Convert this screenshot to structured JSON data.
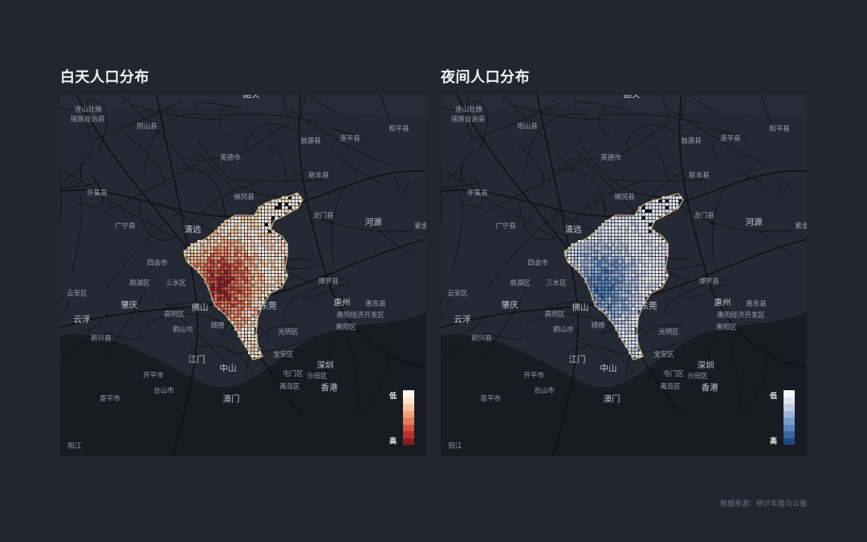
{
  "panels": [
    {
      "title": "白天人口分布",
      "legend": {
        "low": "低",
        "high": "高",
        "colors": [
          "#fff6ee",
          "#fde4cd",
          "#f9c6a0",
          "#f2a27a",
          "#e57a58",
          "#d25440",
          "#b8322d",
          "#8e1a1c"
        ]
      }
    },
    {
      "title": "夜间人口分布",
      "legend": {
        "low": "低",
        "high": "高",
        "colors": [
          "#f4f5fb",
          "#dfe3ef",
          "#c3cde3",
          "#9fb3d6",
          "#7b9bc9",
          "#5a82ba",
          "#3a66a3",
          "#1f477e"
        ]
      }
    }
  ],
  "places": [
    {
      "name": "韶关"
    },
    {
      "name": "连山壮族"
    },
    {
      "name": "瑶族自治县"
    },
    {
      "name": "阳山县"
    },
    {
      "name": "和平县"
    },
    {
      "name": "翁源县"
    },
    {
      "name": "连平县"
    },
    {
      "name": "英德市"
    },
    {
      "name": "新丰县"
    },
    {
      "name": "怀集县"
    },
    {
      "name": "佛冈县"
    },
    {
      "name": "龙门县"
    },
    {
      "name": "河源"
    },
    {
      "name": "紫金"
    },
    {
      "name": "广宁县"
    },
    {
      "name": "清远"
    },
    {
      "name": "四会市"
    },
    {
      "name": "鼎湖区"
    },
    {
      "name": "三水区"
    },
    {
      "name": "博罗县"
    },
    {
      "name": "云安区"
    },
    {
      "name": "肇庆"
    },
    {
      "name": "佛山"
    },
    {
      "name": "东莞"
    },
    {
      "name": "惠州"
    },
    {
      "name": "惠东县"
    },
    {
      "name": "云浮"
    },
    {
      "name": "高明区"
    },
    {
      "name": "惠阳经济开发区"
    },
    {
      "name": "鹤山市"
    },
    {
      "name": "顺德"
    },
    {
      "name": "光明区"
    },
    {
      "name": "惠阳区"
    },
    {
      "name": "新兴县"
    },
    {
      "name": "宝安区"
    },
    {
      "name": "江门"
    },
    {
      "name": "深圳"
    },
    {
      "name": "中山"
    },
    {
      "name": "开平市"
    },
    {
      "name": "屯门区"
    },
    {
      "name": "沙田区"
    },
    {
      "name": "台山市"
    },
    {
      "name": "离岛区"
    },
    {
      "name": "香港"
    },
    {
      "name": "恩平市"
    },
    {
      "name": "澳门"
    },
    {
      "name": "阳江"
    }
  ],
  "source": "数据来源：统计年鉴与公报"
}
